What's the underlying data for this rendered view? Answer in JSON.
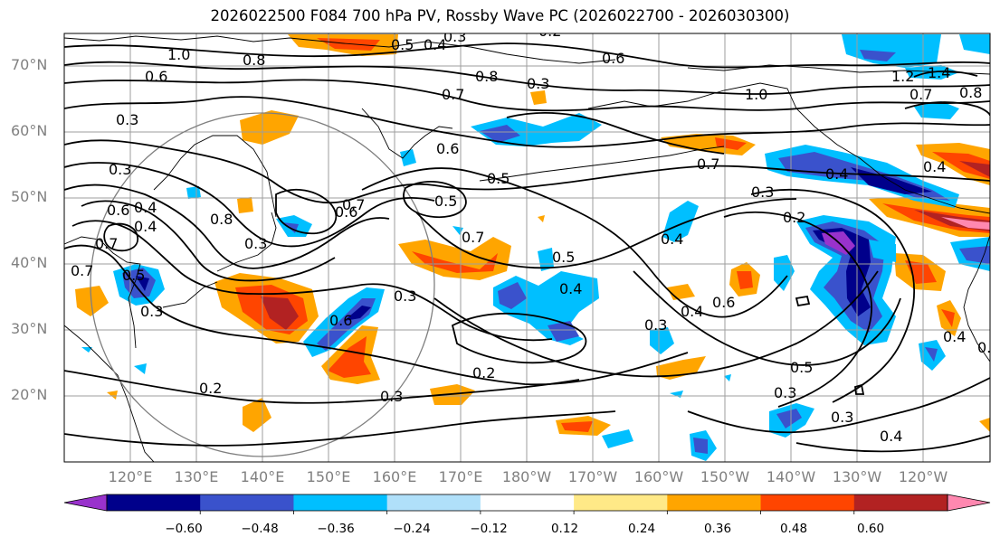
{
  "title": "2026022500 F084 700 hPa PV, Rossby Wave PC (2026022700 - 2026030300)",
  "lat_labels": [
    "70°N",
    "60°N",
    "50°N",
    "40°N",
    "30°N",
    "20°N"
  ],
  "lon_labels": [
    "120°E",
    "130°E",
    "140°E",
    "150°E",
    "160°E",
    "170°E",
    "180°W",
    "170°W",
    "160°W",
    "150°W",
    "140°W",
    "130°W",
    "120°W"
  ],
  "colorbar": {
    "ticks": [
      "−0.60",
      "−0.48",
      "−0.36",
      "−0.24",
      "−0.12",
      "0.12",
      "0.24",
      "0.36",
      "0.48",
      "0.60"
    ],
    "colors": [
      "#9932cc",
      "#00008b",
      "#3a52cc",
      "#00bfff",
      "#b0e0fa",
      "#ffffff",
      "#ffe987",
      "#ffa500",
      "#ff4500",
      "#b22222",
      "#ff88b0"
    ]
  },
  "contour_labels": [
    "1.0",
    "0.8",
    "0.5",
    "0.4",
    "0.3",
    "0.6",
    "0.8",
    "0.7",
    "0.6",
    "0.6",
    "0.5",
    "0.5",
    "0.7",
    "0.5",
    "0.4",
    "0.3",
    "0.6",
    "0.3",
    "0.2",
    "0.3",
    "0.2",
    "0.4",
    "0.7",
    "0.4",
    "1.0",
    "1.2",
    "1.4",
    "0.7",
    "0.8",
    "0.4",
    "0.3",
    "0.2",
    "0.4",
    "0.6",
    "0.3",
    "0.4",
    "0.5",
    "0.3",
    "0.3",
    "0.4",
    "0.7",
    "0.6",
    "0.7",
    "0.5",
    "0.3",
    "0.8",
    "0.3",
    "0.4",
    "0.6",
    "0.3",
    "0.7",
    "0.3",
    "0.2",
    "0.6",
    "0.4"
  ]
}
